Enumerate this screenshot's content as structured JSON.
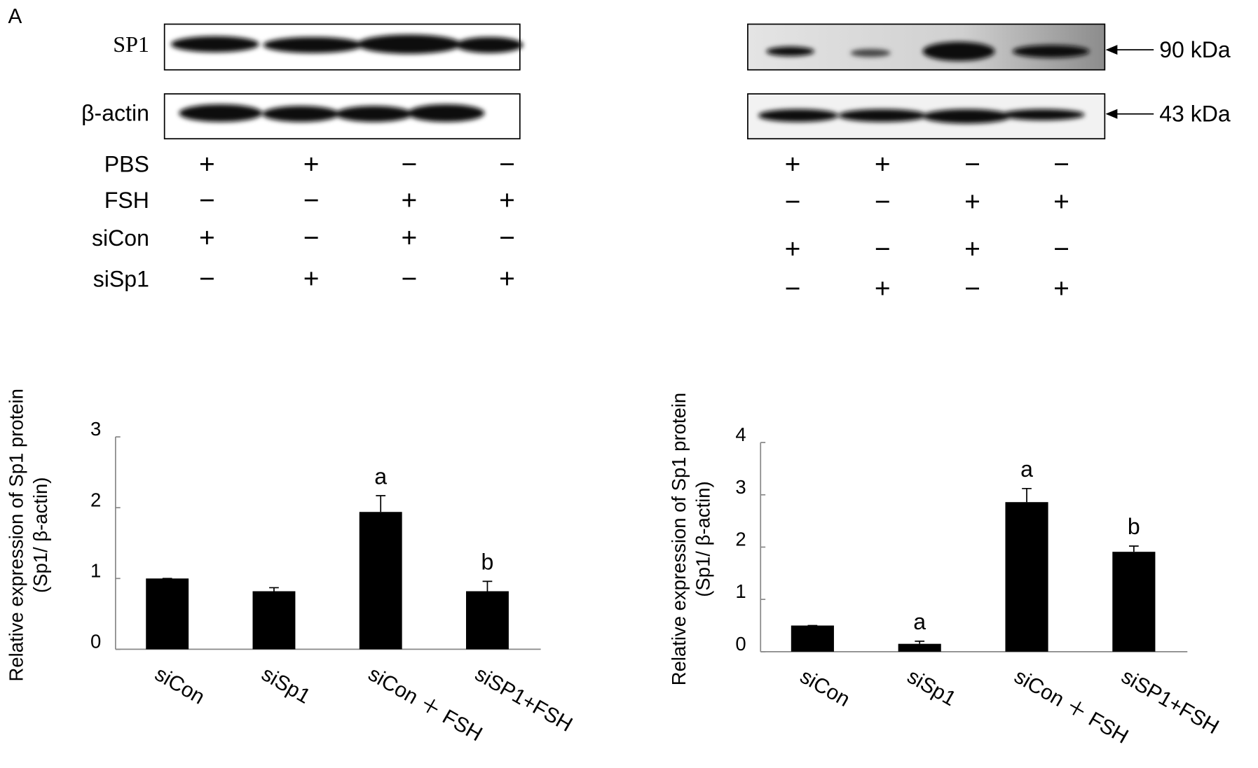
{
  "panel_label": "A",
  "blots": {
    "left": {
      "bands": [
        "SP1",
        "β-actin"
      ],
      "rows": [
        {
          "label": "PBS",
          "signs": [
            "+",
            "+",
            "−",
            "−"
          ]
        },
        {
          "label": "FSH",
          "signs": [
            "−",
            "−",
            "+",
            "+"
          ]
        },
        {
          "label": "siCon",
          "signs": [
            "+",
            "−",
            "+",
            "−"
          ]
        },
        {
          "label": "siSp1",
          "signs": [
            "−",
            "+",
            "−",
            "+"
          ]
        }
      ]
    },
    "right": {
      "markers": [
        "90 kDa",
        "43 kDa"
      ],
      "rows": [
        [
          "+",
          "+",
          "−",
          "−"
        ],
        [
          "−",
          "−",
          "+",
          "+"
        ],
        [
          "+",
          "−",
          "+",
          "−"
        ],
        [
          "−",
          "+",
          "−",
          "+"
        ]
      ]
    }
  },
  "chart_data": [
    {
      "type": "bar",
      "ylabel": [
        "Relative expression of Sp1 protein",
        "(Sp1/  β-actin)"
      ],
      "categories": [
        "siCon",
        "siSp1",
        "siCon ＋ FSH",
        "siSP1+FSH"
      ],
      "values": [
        1.0,
        0.82,
        1.94,
        0.82
      ],
      "errors": [
        0,
        0.05,
        0.23,
        0.14
      ],
      "annotations": [
        null,
        null,
        "a",
        "b"
      ],
      "color": "#000000",
      "ylim": [
        0,
        3
      ],
      "yticks": [
        0,
        1,
        2,
        3
      ]
    },
    {
      "type": "bar",
      "ylabel": [
        "Relative expression of Sp1 protein",
        "(Sp1/  β-actin)"
      ],
      "categories": [
        "siCon",
        "siSp1",
        "siCon ＋ FSH",
        "siSP1+FSH"
      ],
      "values": [
        0.5,
        0.15,
        2.86,
        1.91
      ],
      "errors": [
        0,
        0.05,
        0.26,
        0.11
      ],
      "annotations": [
        null,
        "a",
        "a",
        "b"
      ],
      "color": "#000000",
      "ylim": [
        0,
        4
      ],
      "yticks": [
        0,
        1,
        2,
        3,
        4
      ]
    }
  ]
}
